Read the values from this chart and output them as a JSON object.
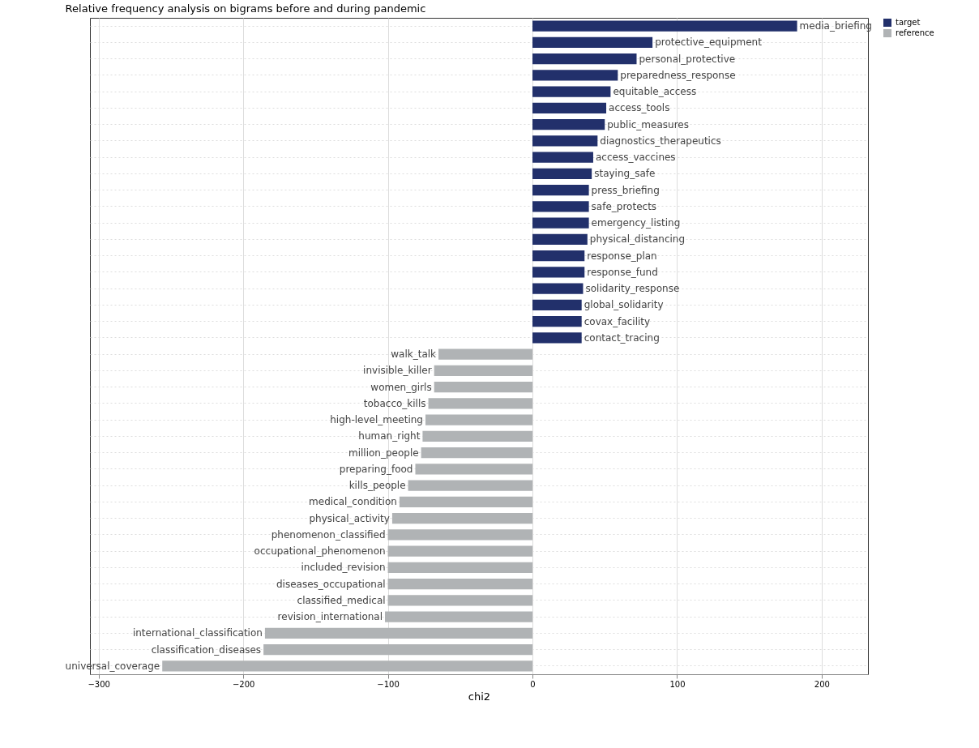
{
  "chart_data": {
    "type": "bar",
    "orientation": "horizontal",
    "title": "Relative frequency analysis on bigrams before and during pandemic",
    "xlabel": "chi2",
    "categories": [
      "media_briefing",
      "protective_equipment",
      "personal_protective",
      "preparedness_response",
      "equitable_access",
      "access_tools",
      "public_measures",
      "diagnostics_therapeutics",
      "access_vaccines",
      "staying_safe",
      "press_briefing",
      "safe_protects",
      "emergency_listing",
      "physical_distancing",
      "response_plan",
      "response_fund",
      "solidarity_response",
      "global_solidarity",
      "covax_facility",
      "contact_tracing",
      "walk_talk",
      "invisible_killer",
      "women_girls",
      "tobacco_kills",
      "high-level_meeting",
      "human_right",
      "million_people",
      "preparing_food",
      "kills_people",
      "medical_condition",
      "physical_activity",
      "phenomenon_classified",
      "occupational_phenomenon",
      "included_revision",
      "diseases_occupational",
      "classified_medical",
      "revision_international",
      "international_classification",
      "classification_diseases",
      "universal_coverage"
    ],
    "series": [
      {
        "name": "target",
        "color": "#22306b",
        "values": [
          183,
          83,
          72,
          59,
          54,
          51,
          50,
          45,
          42,
          41,
          39,
          39,
          39,
          38,
          36,
          36,
          35,
          34,
          34,
          34,
          null,
          null,
          null,
          null,
          null,
          null,
          null,
          null,
          null,
          null,
          null,
          null,
          null,
          null,
          null,
          null,
          null,
          null,
          null,
          null
        ]
      },
      {
        "name": "reference",
        "color": "#b0b3b5",
        "values": [
          null,
          null,
          null,
          null,
          null,
          null,
          null,
          null,
          null,
          null,
          null,
          null,
          null,
          null,
          null,
          null,
          null,
          null,
          null,
          null,
          -65,
          -68,
          -68,
          -72,
          -74,
          -76,
          -77,
          -81,
          -86,
          -92,
          -97,
          -100,
          -100,
          -100,
          -100,
          -100,
          -102,
          -185,
          -186,
          -256
        ]
      }
    ],
    "xlim": [
      -306,
      232
    ],
    "xticks": [
      -300,
      -200,
      -100,
      0,
      100,
      200
    ],
    "grid": true,
    "legend": "right"
  }
}
